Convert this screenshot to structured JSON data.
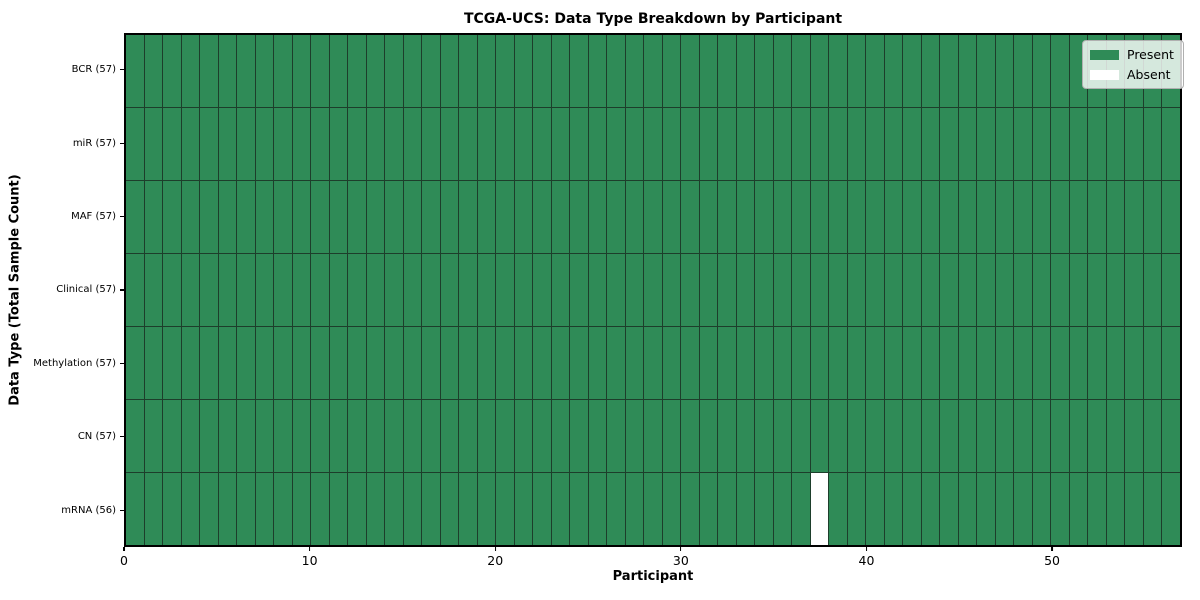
{
  "chart_data": {
    "type": "heatmap",
    "title": "TCGA-UCS: Data Type Breakdown by Participant",
    "xlabel": "Participant",
    "ylabel": "Data Type (Total Sample Count)",
    "x_ticks": [
      0,
      10,
      20,
      30,
      40,
      50
    ],
    "x_range": [
      0,
      57
    ],
    "n_participants": 57,
    "rows": [
      {
        "label": "BCR (57)",
        "data_type": "BCR",
        "total_samples": 57,
        "absent_participants": []
      },
      {
        "label": "miR (57)",
        "data_type": "miR",
        "total_samples": 57,
        "absent_participants": []
      },
      {
        "label": "MAF (57)",
        "data_type": "MAF",
        "total_samples": 57,
        "absent_participants": []
      },
      {
        "label": "Clinical (57)",
        "data_type": "Clinical",
        "total_samples": 57,
        "absent_participants": []
      },
      {
        "label": "Methylation (57)",
        "data_type": "Methylation",
        "total_samples": 57,
        "absent_participants": []
      },
      {
        "label": "CN (57)",
        "data_type": "CN",
        "total_samples": 57,
        "absent_participants": []
      },
      {
        "label": "mRNA (56)",
        "data_type": "mRNA",
        "total_samples": 56,
        "absent_participants": [
          37
        ]
      }
    ],
    "legend": {
      "position": "upper-right",
      "entries": [
        {
          "label": "Present",
          "color": "#2f8b57"
        },
        {
          "label": "Absent",
          "color": "#ffffff"
        }
      ]
    },
    "colors": {
      "present": "#2f8b57",
      "absent": "#ffffff",
      "cell_edge": "#1d3e2b",
      "axis_border": "#000000"
    }
  }
}
